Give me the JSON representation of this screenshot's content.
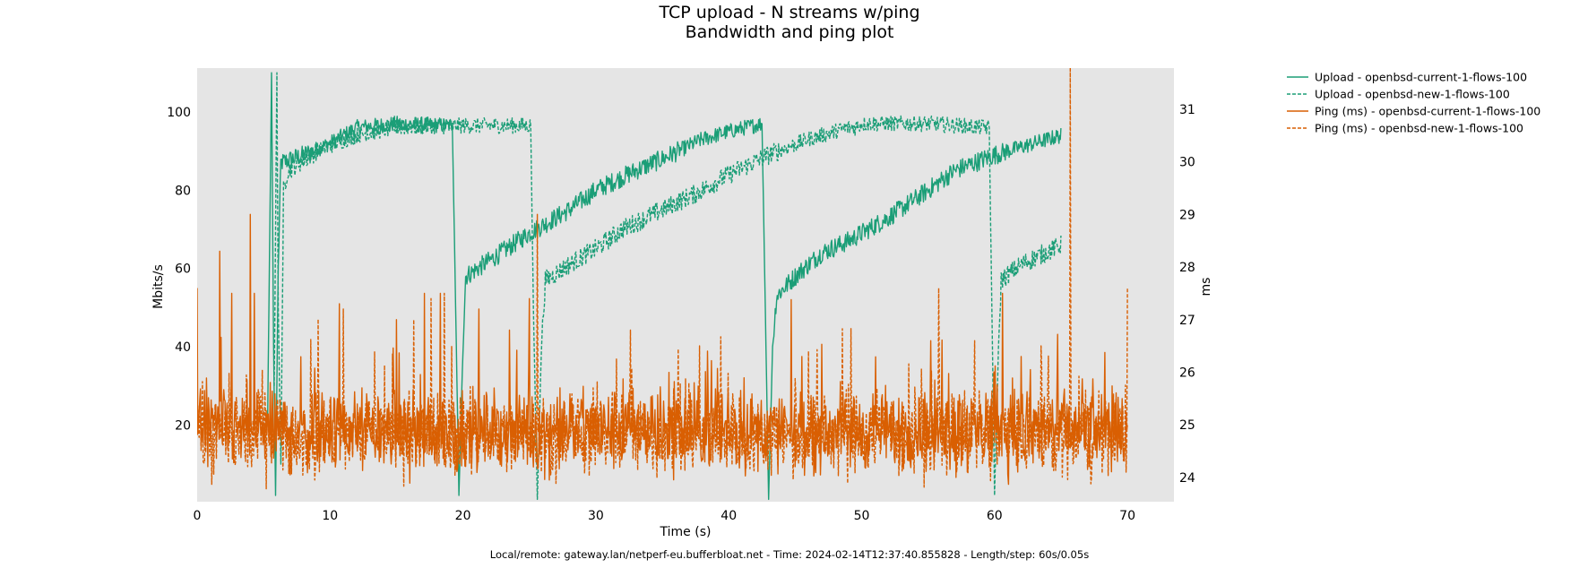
{
  "chart_data": {
    "type": "line",
    "title": "TCP upload - N streams w/ping",
    "subtitle": "Bandwidth and ping plot",
    "xlabel": "Time (s)",
    "ylabel": "Mbits/s",
    "y2label": "ms",
    "xlim": [
      0,
      73.5
    ],
    "ylim": [
      0.4,
      111.2
    ],
    "y2lim": [
      23.54,
      31.78
    ],
    "xticks": [
      "0",
      "10",
      "20",
      "30",
      "40",
      "50",
      "60",
      "70"
    ],
    "yticks": [
      "20",
      "40",
      "60",
      "80",
      "100"
    ],
    "y2ticks": [
      "24",
      "25",
      "26",
      "27",
      "28",
      "29",
      "30",
      "31"
    ],
    "grid": false,
    "legend_position": "outside-right",
    "colors": {
      "upload": "#1b9e77",
      "ping": "#d95f02",
      "background": "#e5e5e5"
    },
    "series": [
      {
        "name": "Upload - openbsd-current-1-flows-100",
        "axis": "left",
        "style": "solid",
        "color": "#1b9e77",
        "points": [
          [
            5.3,
            20
          ],
          [
            5.6,
            110
          ],
          [
            5.75,
            40
          ],
          [
            5.9,
            2
          ],
          [
            6.1,
            60
          ],
          [
            6.3,
            87
          ],
          [
            8,
            89
          ],
          [
            10,
            92
          ],
          [
            12,
            96
          ],
          [
            15,
            97
          ],
          [
            19.2,
            96.5
          ],
          [
            19.4,
            60
          ],
          [
            19.7,
            2
          ],
          [
            20.0,
            40
          ],
          [
            20.2,
            58
          ],
          [
            22,
            62
          ],
          [
            25,
            69
          ],
          [
            28,
            75
          ],
          [
            30,
            80
          ],
          [
            33,
            85
          ],
          [
            35,
            88
          ],
          [
            38,
            93
          ],
          [
            40,
            95
          ],
          [
            42.5,
            97
          ],
          [
            42.7,
            60
          ],
          [
            43,
            1
          ],
          [
            43.3,
            40
          ],
          [
            43.6,
            53
          ],
          [
            45,
            58
          ],
          [
            47,
            64
          ],
          [
            49,
            67
          ],
          [
            52,
            73
          ],
          [
            55,
            80
          ],
          [
            57,
            85
          ],
          [
            60,
            89
          ],
          [
            63,
            92
          ],
          [
            65,
            94
          ]
        ]
      },
      {
        "name": "Upload - openbsd-new-1-flows-100",
        "axis": "left",
        "style": "dashed",
        "color": "#1b9e77",
        "points": [
          [
            5.8,
            30
          ],
          [
            6.0,
            110
          ],
          [
            6.1,
            50
          ],
          [
            6.3,
            10
          ],
          [
            6.5,
            80
          ],
          [
            6.8,
            85
          ],
          [
            9,
            90
          ],
          [
            12,
            94
          ],
          [
            15,
            96
          ],
          [
            20,
            96.5
          ],
          [
            25.1,
            96.5
          ],
          [
            25.3,
            50
          ],
          [
            25.6,
            1
          ],
          [
            25.9,
            40
          ],
          [
            26.2,
            57
          ],
          [
            28,
            61
          ],
          [
            30,
            65
          ],
          [
            32,
            70
          ],
          [
            35,
            75
          ],
          [
            38,
            80
          ],
          [
            40,
            84
          ],
          [
            43,
            89
          ],
          [
            46,
            93
          ],
          [
            49,
            96
          ],
          [
            49.5,
            96
          ],
          [
            50,
            97
          ],
          [
            55,
            97
          ],
          [
            59.6,
            96
          ],
          [
            59.8,
            50
          ],
          [
            60.0,
            2
          ],
          [
            60.3,
            40
          ],
          [
            60.5,
            57
          ],
          [
            62,
            61
          ],
          [
            65,
            66
          ]
        ]
      },
      {
        "name": "Ping (ms) - openbsd-current-1-flows-100",
        "axis": "right",
        "style": "solid",
        "color": "#d95f02",
        "baseline_ms": 24.9,
        "range_ms": [
          23.6,
          26.0
        ],
        "end": 70,
        "spikes": [
          [
            0,
            27.6
          ],
          [
            1.7,
            28.3
          ],
          [
            2.6,
            27.5
          ],
          [
            4.0,
            29.0
          ],
          [
            4.3,
            27.5
          ],
          [
            10.7,
            27.3
          ],
          [
            15.0,
            27.0
          ],
          [
            17.1,
            27.5
          ],
          [
            18.3,
            27.5
          ],
          [
            21.2,
            27.2
          ],
          [
            23.5,
            26.8
          ],
          [
            25.0,
            27.4
          ],
          [
            38.4,
            26.4
          ],
          [
            45.5,
            26.3
          ],
          [
            55.2,
            26.6
          ],
          [
            60.6,
            27.5
          ],
          [
            62.0,
            26.3
          ]
        ]
      },
      {
        "name": "Ping (ms) - openbsd-new-1-flows-100",
        "axis": "right",
        "style": "dashed",
        "color": "#d95f02",
        "baseline_ms": 24.8,
        "range_ms": [
          23.6,
          26.0
        ],
        "end": 70,
        "spikes": [
          [
            11.0,
            27.2
          ],
          [
            16.3,
            27.0
          ],
          [
            17.6,
            27.4
          ],
          [
            18.6,
            27.5
          ],
          [
            25.6,
            29.0
          ],
          [
            32.6,
            26.8
          ],
          [
            37.8,
            26.5
          ],
          [
            46.0,
            26.4
          ],
          [
            55.8,
            27.6
          ],
          [
            58.5,
            26.6
          ],
          [
            63.5,
            26.5
          ],
          [
            65.7,
            31.8
          ],
          [
            70,
            27.6
          ]
        ]
      }
    ]
  },
  "footer": "Local/remote: gateway.lan/netperf-eu.bufferbloat.net - Time: 2024-02-14T12:37:40.855828 - Length/step: 60s/0.05s"
}
